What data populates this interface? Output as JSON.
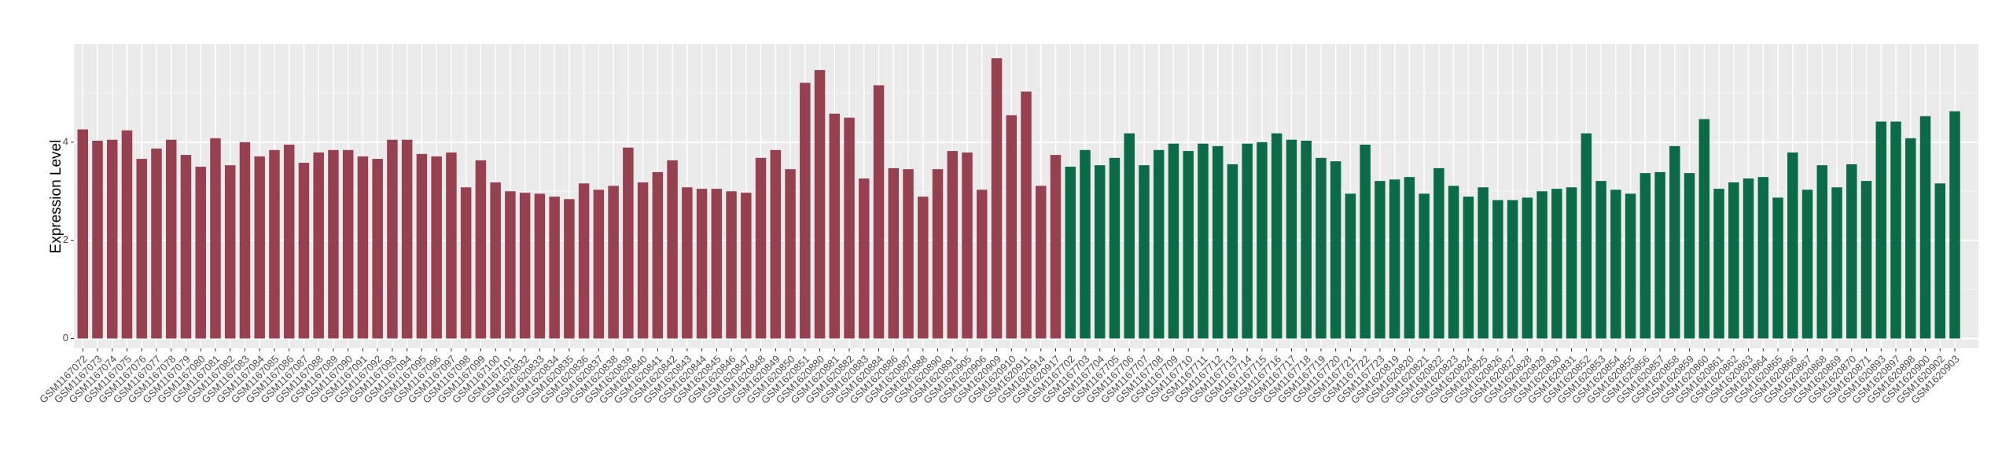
{
  "chart_data": {
    "type": "bar",
    "y_label": "Expression Level",
    "categories": [
      "GSM1167072",
      "GSM1167073",
      "GSM1167074",
      "GSM1167075",
      "GSM1167076",
      "GSM1167077",
      "GSM1167078",
      "GSM1167079",
      "GSM1167080",
      "GSM1167081",
      "GSM1167082",
      "GSM1167083",
      "GSM1167084",
      "GSM1167085",
      "GSM1167086",
      "GSM1167087",
      "GSM1167088",
      "GSM1167089",
      "GSM1167090",
      "GSM1167091",
      "GSM1167092",
      "GSM1167093",
      "GSM1167094",
      "GSM1167095",
      "GSM1167096",
      "GSM1167097",
      "GSM1167098",
      "GSM1167099",
      "GSM1167100",
      "GSM1167101",
      "GSM1620832",
      "GSM1620833",
      "GSM1620834",
      "GSM1620835",
      "GSM1620836",
      "GSM1620837",
      "GSM1620838",
      "GSM1620839",
      "GSM1620840",
      "GSM1620841",
      "GSM1620842",
      "GSM1620843",
      "GSM1620844",
      "GSM1620845",
      "GSM1620846",
      "GSM1620847",
      "GSM1620848",
      "GSM1620849",
      "GSM1620850",
      "GSM1620851",
      "GSM1620880",
      "GSM1620881",
      "GSM1620882",
      "GSM1620883",
      "GSM1620884",
      "GSM1620886",
      "GSM1620887",
      "GSM1620888",
      "GSM1620890",
      "GSM1620891",
      "GSM1620905",
      "GSM1620906",
      "GSM1620909",
      "GSM1620910",
      "GSM1620911",
      "GSM1620914",
      "GSM1620917",
      "GSM1167702",
      "GSM1167703",
      "GSM1167704",
      "GSM1167705",
      "GSM1167706",
      "GSM1167707",
      "GSM1167708",
      "GSM1167709",
      "GSM1167710",
      "GSM1167711",
      "GSM1167712",
      "GSM1167713",
      "GSM1167714",
      "GSM1167715",
      "GSM1167716",
      "GSM1167717",
      "GSM1167718",
      "GSM1167719",
      "GSM1167720",
      "GSM1167721",
      "GSM1167722",
      "GSM1167723",
      "GSM1620819",
      "GSM1620820",
      "GSM1620821",
      "GSM1620822",
      "GSM1620823",
      "GSM1620824",
      "GSM1620825",
      "GSM1620826",
      "GSM1620827",
      "GSM1620828",
      "GSM1620829",
      "GSM1620830",
      "GSM1620831",
      "GSM1620852",
      "GSM1620853",
      "GSM1620854",
      "GSM1620855",
      "GSM1620856",
      "GSM1620857",
      "GSM1620858",
      "GSM1620859",
      "GSM1620860",
      "GSM1620861",
      "GSM1620862",
      "GSM1620863",
      "GSM1620864",
      "GSM1620865",
      "GSM1620866",
      "GSM1620867",
      "GSM1620868",
      "GSM1620869",
      "GSM1620870",
      "GSM1620871",
      "GSM1620893",
      "GSM1620897",
      "GSM1620898",
      "GSM1620900",
      "GSM1620902",
      "GSM1620903"
    ],
    "series": [
      {
        "color": "#974150",
        "values": [
          4.26,
          4.03,
          4.05,
          4.24,
          3.66,
          3.87,
          4.05,
          3.74,
          3.5,
          4.08,
          3.53,
          4.0,
          3.71,
          3.84,
          3.95,
          3.58,
          3.79,
          3.84,
          3.84,
          3.71,
          3.66,
          4.05,
          4.05,
          3.76,
          3.71,
          3.79,
          3.08,
          3.63,
          3.18,
          3.0,
          2.97,
          2.95,
          2.89,
          2.84,
          3.16,
          3.03,
          3.11,
          3.89,
          3.18,
          3.39,
          3.63,
          3.08,
          3.05,
          3.05,
          3.0,
          2.97,
          3.68,
          3.84,
          3.45,
          5.21,
          5.47,
          4.58,
          4.5,
          3.26,
          5.16,
          3.47,
          3.45,
          2.89,
          3.45,
          3.82,
          3.79,
          3.03,
          5.71,
          4.55,
          5.03,
          3.11,
          3.74,
          null,
          null,
          null,
          null,
          null,
          null,
          null,
          null,
          null,
          null,
          null,
          null,
          null,
          null,
          null,
          null,
          null,
          null,
          null,
          null,
          null,
          null,
          null,
          null,
          null,
          null,
          null,
          null,
          null,
          null,
          null,
          null,
          null,
          null,
          null,
          null,
          null,
          null,
          null,
          null,
          null,
          null,
          null,
          null,
          null,
          null,
          null,
          null,
          null,
          null,
          null,
          null,
          null,
          null,
          null,
          null,
          null,
          null,
          null,
          null,
          null
        ]
      },
      {
        "color": "#0b6a48",
        "values": [
          null,
          null,
          null,
          null,
          null,
          null,
          null,
          null,
          null,
          null,
          null,
          null,
          null,
          null,
          null,
          null,
          null,
          null,
          null,
          null,
          null,
          null,
          null,
          null,
          null,
          null,
          null,
          null,
          null,
          null,
          null,
          null,
          null,
          null,
          null,
          null,
          null,
          null,
          null,
          null,
          null,
          null,
          null,
          null,
          null,
          null,
          null,
          null,
          null,
          null,
          null,
          null,
          null,
          null,
          null,
          null,
          null,
          null,
          null,
          null,
          null,
          null,
          null,
          null,
          null,
          null,
          null,
          3.5,
          3.84,
          3.53,
          3.68,
          4.18,
          3.53,
          3.84,
          3.97,
          3.82,
          3.97,
          3.92,
          3.55,
          3.97,
          4.0,
          4.18,
          4.05,
          4.03,
          3.68,
          3.61,
          2.95,
          3.95,
          3.21,
          3.24,
          3.29,
          2.95,
          3.47,
          3.11,
          2.89,
          3.08,
          2.82,
          2.82,
          2.87,
          3.0,
          3.05,
          3.08,
          4.18,
          3.21,
          3.03,
          2.95,
          3.37,
          3.39,
          3.92,
          3.37,
          4.47,
          3.05,
          3.18,
          3.26,
          3.29,
          2.87,
          3.79,
          3.03,
          3.53,
          3.08,
          3.55,
          3.21,
          4.42,
          4.42,
          4.08,
          4.53,
          3.16,
          4.63
        ]
      }
    ],
    "ylim": [
      -0.2,
      6.0
    ],
    "yticks": [
      0,
      2,
      4
    ],
    "grid": true
  }
}
